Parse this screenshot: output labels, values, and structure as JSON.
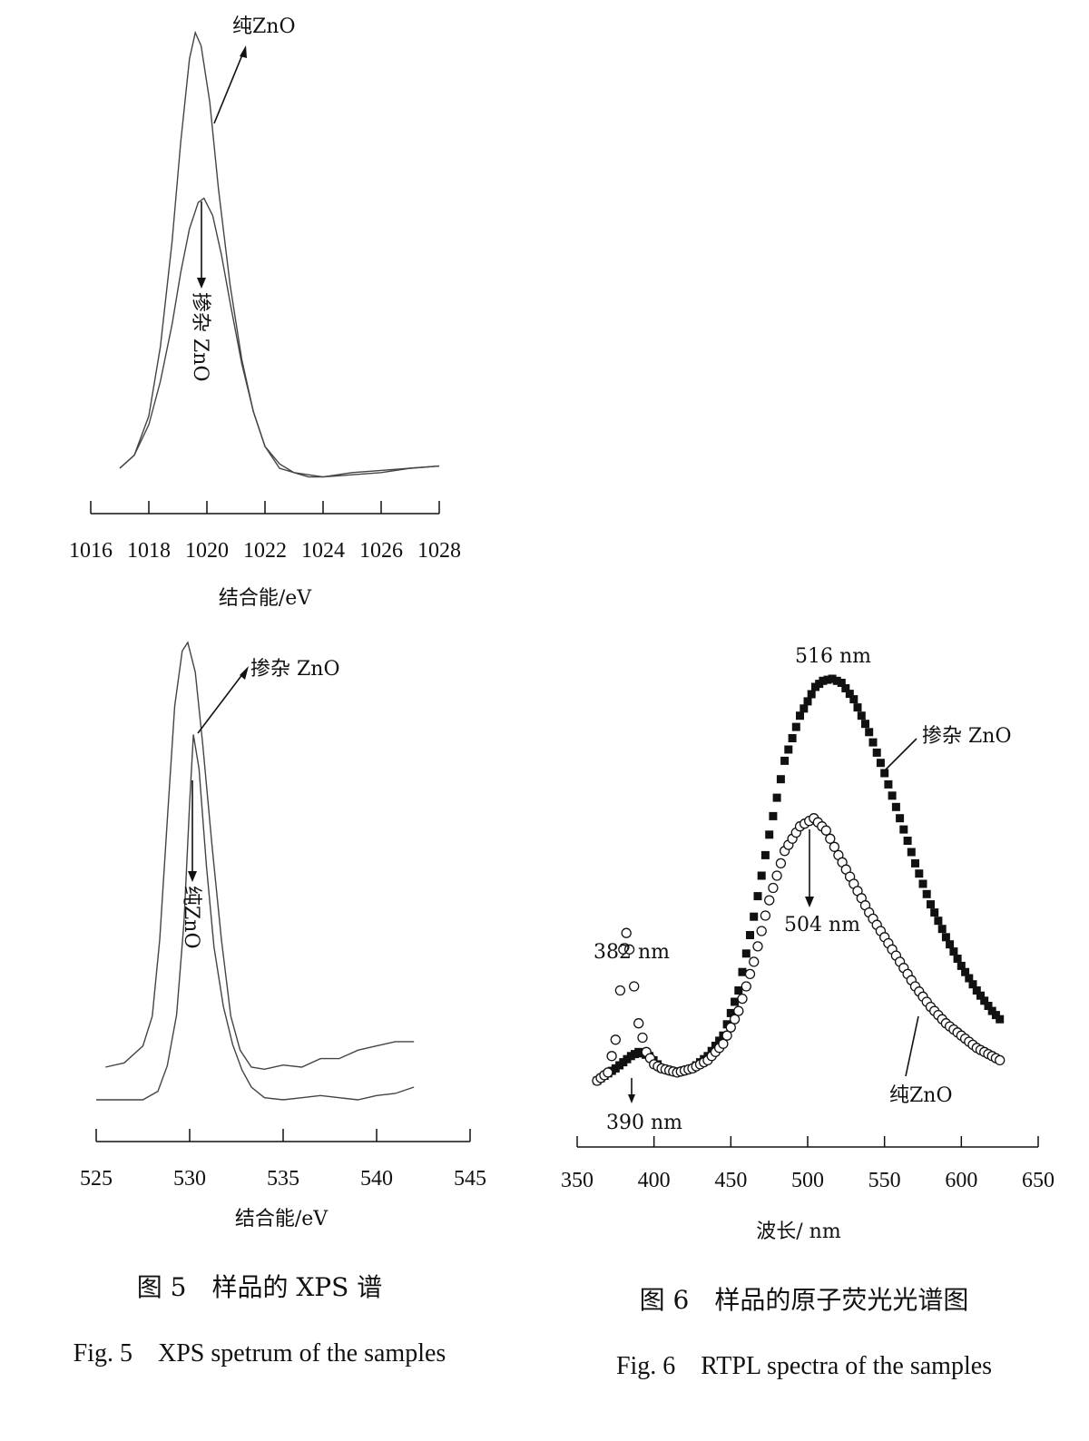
{
  "charts": {
    "xps_zn": {
      "chart_data": {
        "type": "line",
        "xlabel": "结合能/eV",
        "xlim": [
          1016,
          1028
        ],
        "ticks": [
          1016,
          1018,
          1020,
          1022,
          1024,
          1026,
          1028
        ],
        "series": [
          {
            "name": "纯ZnO",
            "x": [
              1017.0,
              1017.5,
              1018.0,
              1018.4,
              1018.8,
              1019.1,
              1019.4,
              1019.6,
              1019.8,
              1020.1,
              1020.4,
              1020.8,
              1021.2,
              1021.6,
              1022.0,
              1022.5,
              1023.0,
              1023.5,
              1024.0,
              1025.0,
              1026.0,
              1027.0,
              1028.0
            ],
            "y": [
              0.0,
              0.03,
              0.12,
              0.28,
              0.52,
              0.75,
              0.94,
              1.0,
              0.97,
              0.84,
              0.64,
              0.42,
              0.25,
              0.13,
              0.05,
              0.0,
              -0.01,
              -0.015,
              -0.02,
              -0.01,
              -0.005,
              0.0,
              0.005
            ]
          },
          {
            "name": "掺杂 ZnO",
            "x": [
              1017.0,
              1017.5,
              1018.0,
              1018.4,
              1018.8,
              1019.1,
              1019.4,
              1019.7,
              1019.9,
              1020.2,
              1020.5,
              1020.8,
              1021.2,
              1021.6,
              1022.0,
              1022.5,
              1023.0,
              1023.5,
              1024.0,
              1025.0,
              1026.0,
              1027.0,
              1028.0
            ],
            "y": [
              0.0,
              0.03,
              0.1,
              0.2,
              0.33,
              0.45,
              0.55,
              0.61,
              0.62,
              0.58,
              0.49,
              0.38,
              0.24,
              0.13,
              0.05,
              0.01,
              -0.01,
              -0.02,
              -0.02,
              -0.015,
              -0.01,
              0.0,
              0.005
            ]
          }
        ],
        "annotations": [
          "纯ZnO",
          "掺杂 ZnO"
        ]
      }
    },
    "xps_o": {
      "chart_data": {
        "type": "line",
        "xlabel": "结合能/eV",
        "xlim": [
          525,
          545
        ],
        "ticks": [
          525,
          530,
          535,
          540,
          545
        ],
        "series": [
          {
            "name": "掺杂 ZnO",
            "x": [
              525.5,
              526.5,
              527.5,
              528.0,
              528.4,
              528.8,
              529.2,
              529.6,
              529.9,
              530.3,
              530.7,
              531.2,
              531.7,
              532.2,
              532.7,
              533.3,
              534.0,
              535.0,
              536.0,
              537.0,
              538.0,
              539.0,
              540.0,
              541.0,
              542.0
            ],
            "y": [
              0.0,
              0.01,
              0.05,
              0.12,
              0.3,
              0.58,
              0.85,
              0.98,
              1.0,
              0.93,
              0.76,
              0.52,
              0.3,
              0.12,
              0.04,
              0.0,
              -0.005,
              0.005,
              0.0,
              0.02,
              0.02,
              0.04,
              0.05,
              0.06,
              0.06
            ]
          },
          {
            "name": "纯ZnO",
            "x": [
              525.0,
              526.5,
              527.5,
              528.3,
              528.8,
              529.3,
              529.7,
              530.0,
              530.2,
              530.5,
              530.9,
              531.3,
              531.8,
              532.3,
              532.8,
              533.3,
              534.0,
              535.0,
              536.0,
              537.0,
              538.0,
              539.0,
              540.0,
              541.0,
              542.0
            ],
            "y": [
              0.0,
              0.0,
              0.0,
              0.02,
              0.08,
              0.2,
              0.42,
              0.7,
              0.86,
              0.78,
              0.55,
              0.36,
              0.22,
              0.13,
              0.07,
              0.03,
              0.005,
              0.0,
              0.005,
              0.01,
              0.005,
              0.0,
              0.01,
              0.015,
              0.03
            ]
          }
        ],
        "annotations": [
          "掺杂 ZnO",
          "纯ZnO"
        ]
      }
    },
    "pl": {
      "chart_data": {
        "type": "scatter",
        "xlabel": "波长/ nm",
        "xlim": [
          350,
          650
        ],
        "ticks": [
          350,
          400,
          450,
          500,
          550,
          600,
          650
        ],
        "peaks": {
          "doped_visible": 516,
          "pure_uv": 382,
          "pure_visible": 504,
          "doped_uv": 390
        },
        "series": [
          {
            "name": "掺杂 ZnO",
            "marker": "filled-square",
            "x": [
              363,
              375,
              385,
              390,
              397,
              405,
              415,
              425,
              435,
              445,
              455,
              465,
              475,
              485,
              495,
              505,
              510,
              516,
              522,
              530,
              540,
              550,
              560,
              570,
              580,
              590,
              600,
              610,
              620,
              625
            ],
            "y": [
              0.02,
              0.05,
              0.08,
              0.09,
              0.08,
              0.05,
              0.04,
              0.05,
              0.08,
              0.13,
              0.24,
              0.42,
              0.62,
              0.8,
              0.91,
              0.98,
              0.995,
              1.0,
              0.99,
              0.95,
              0.87,
              0.77,
              0.66,
              0.55,
              0.45,
              0.37,
              0.3,
              0.24,
              0.19,
              0.17
            ]
          },
          {
            "name": "纯ZnO",
            "marker": "open-circle",
            "x": [
              363,
              370,
              375,
              378,
              380,
              382,
              384,
              387,
              390,
              395,
              400,
              405,
              415,
              425,
              435,
              445,
              455,
              465,
              475,
              485,
              495,
              504,
              512,
              520,
              530,
              540,
              550,
              560,
              570,
              580,
              590,
              600,
              610,
              620,
              625
            ],
            "y": [
              0.02,
              0.04,
              0.12,
              0.24,
              0.34,
              0.38,
              0.34,
              0.25,
              0.16,
              0.09,
              0.06,
              0.05,
              0.04,
              0.05,
              0.07,
              0.11,
              0.19,
              0.31,
              0.46,
              0.58,
              0.64,
              0.66,
              0.63,
              0.57,
              0.5,
              0.43,
              0.37,
              0.31,
              0.25,
              0.2,
              0.16,
              0.13,
              0.1,
              0.08,
              0.07
            ]
          }
        ],
        "annotations": [
          "516 nm",
          "382 nm",
          "504 nm",
          "390 nm",
          "掺杂 ZnO",
          "纯ZnO"
        ]
      }
    }
  },
  "labels": {
    "xps_zn_pure": "纯ZnO",
    "xps_zn_doped": "掺杂 ZnO",
    "xps_o_doped": "掺杂 ZnO",
    "xps_o_pure": "纯ZnO",
    "pl_516": "516 nm",
    "pl_382": "382 nm",
    "pl_504": "504 nm",
    "pl_390": "390 nm",
    "pl_doped": "掺杂 ZnO",
    "pl_pure": "纯ZnO"
  },
  "captions": {
    "fig5_cn": "图 5　样品的 XPS 谱",
    "fig5_en": "Fig. 5　XPS spetrum of the samples",
    "fig6_cn": "图 6　样品的原子荧光光谱图",
    "fig6_en": "Fig. 6　RTPL spectra of the samples"
  },
  "colors": {
    "curve": "#444444",
    "ink": "#111111",
    "background": "#ffffff"
  }
}
